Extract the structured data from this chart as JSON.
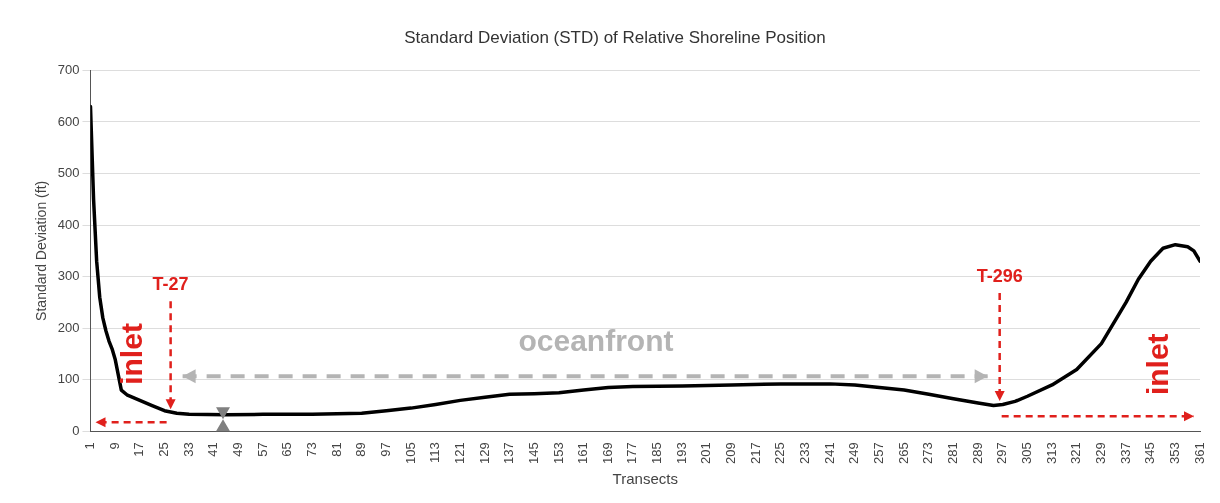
{
  "chart_data": {
    "type": "line",
    "title": "Standard Deviation (STD) of Relative Shoreline Position",
    "xlabel": "Transects",
    "ylabel": "Standard Deviation (ft)",
    "xlim": [
      1,
      361
    ],
    "xticks": [
      1,
      9,
      17,
      25,
      33,
      41,
      49,
      57,
      65,
      73,
      81,
      89,
      97,
      105,
      113,
      121,
      129,
      137,
      145,
      153,
      161,
      169,
      177,
      185,
      193,
      201,
      209,
      217,
      225,
      233,
      241,
      249,
      257,
      265,
      273,
      281,
      289,
      297,
      305,
      313,
      321,
      329,
      337,
      345,
      353,
      361
    ],
    "ylim": [
      0,
      700
    ],
    "yticks": [
      0,
      100,
      200,
      300,
      400,
      500,
      600,
      700
    ],
    "grid": "y",
    "legend": false,
    "marker": "none",
    "line_style": "solid",
    "series": [
      {
        "color": "#000000",
        "x": [
          1,
          2,
          3,
          4,
          5,
          6,
          7,
          8,
          9,
          10,
          11,
          13,
          17,
          21,
          25,
          29,
          33,
          45,
          57,
          73,
          89,
          97,
          105,
          113,
          121,
          129,
          137,
          145,
          153,
          161,
          169,
          177,
          193,
          209,
          225,
          241,
          249,
          257,
          265,
          273,
          281,
          289,
          294,
          297,
          301,
          305,
          313,
          321,
          329,
          337,
          341,
          345,
          349,
          353,
          357,
          359,
          361
        ],
        "values": [
          630,
          450,
          330,
          260,
          220,
          195,
          175,
          160,
          140,
          110,
          80,
          70,
          60,
          50,
          40,
          35,
          33,
          32,
          33,
          33,
          35,
          40,
          45,
          52,
          60,
          66,
          72,
          73,
          75,
          80,
          85,
          87,
          88,
          90,
          92,
          92,
          90,
          85,
          80,
          72,
          63,
          55,
          50,
          52,
          58,
          68,
          90,
          120,
          170,
          250,
          295,
          330,
          355,
          362,
          358,
          350,
          330
        ]
      }
    ],
    "annotations": [
      {
        "text": "T-27",
        "x": 27,
        "y": 35
      },
      {
        "text": "T-296",
        "x": 296,
        "y": 51
      },
      "inlet",
      "oceanfront",
      "inlet"
    ]
  }
}
